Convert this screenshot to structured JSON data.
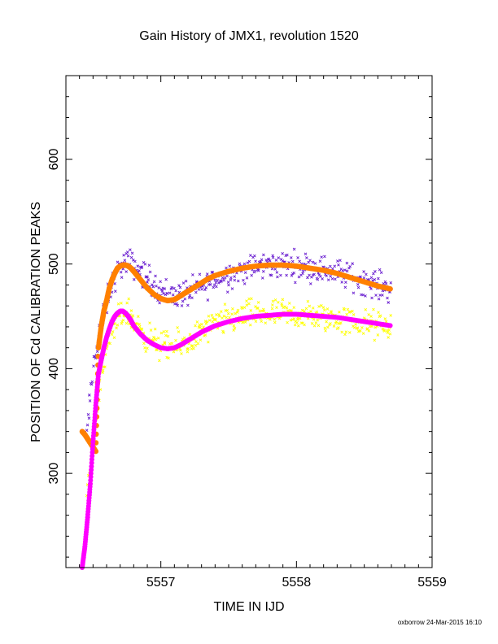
{
  "chart_data": {
    "type": "scatter",
    "title": "Gain History of JMX1, revolution 1520",
    "xlabel": "TIME IN IJD",
    "ylabel": "POSITION OF Cd CALIBRATION PEAKS",
    "xlim": [
      5556.3,
      5559
    ],
    "ylim": [
      210,
      680
    ],
    "x_ticks": [
      5557,
      5558,
      5559
    ],
    "y_ticks": [
      300,
      400,
      500,
      600
    ],
    "grid": false,
    "series": [
      {
        "marker": "x",
        "color": "#6a1fd0",
        "trend": [
          [
            5556.45,
            330
          ],
          [
            5556.5,
            400
          ],
          [
            5556.55,
            440
          ],
          [
            5556.6,
            462
          ],
          [
            5556.65,
            485
          ],
          [
            5556.7,
            497
          ],
          [
            5556.75,
            502
          ],
          [
            5556.8,
            499
          ],
          [
            5556.9,
            487
          ],
          [
            5557.0,
            475
          ],
          [
            5557.1,
            470
          ],
          [
            5557.2,
            472
          ],
          [
            5557.3,
            478
          ],
          [
            5557.4,
            485
          ],
          [
            5557.5,
            490
          ],
          [
            5557.6,
            494
          ],
          [
            5557.7,
            497
          ],
          [
            5557.8,
            499
          ],
          [
            5557.9,
            500
          ],
          [
            5558.0,
            499
          ],
          [
            5558.1,
            497
          ],
          [
            5558.2,
            495
          ],
          [
            5558.3,
            492
          ],
          [
            5558.4,
            488
          ],
          [
            5558.5,
            484
          ],
          [
            5558.6,
            480
          ],
          [
            5558.7,
            476
          ]
        ],
        "spread": 13
      },
      {
        "marker": "x",
        "color": "#ffff00",
        "trend": [
          [
            5556.45,
            270
          ],
          [
            5556.5,
            330
          ],
          [
            5556.55,
            390
          ],
          [
            5556.6,
            420
          ],
          [
            5556.65,
            435
          ],
          [
            5556.7,
            450
          ],
          [
            5556.75,
            455
          ],
          [
            5556.8,
            445
          ],
          [
            5556.9,
            430
          ],
          [
            5557.0,
            422
          ],
          [
            5557.1,
            420
          ],
          [
            5557.2,
            425
          ],
          [
            5557.3,
            435
          ],
          [
            5557.4,
            442
          ],
          [
            5557.5,
            447
          ],
          [
            5557.6,
            450
          ],
          [
            5557.7,
            452
          ],
          [
            5557.8,
            452
          ],
          [
            5557.9,
            452
          ],
          [
            5558.0,
            451
          ],
          [
            5558.1,
            450
          ],
          [
            5558.2,
            449
          ],
          [
            5558.3,
            447
          ],
          [
            5558.4,
            445
          ],
          [
            5558.5,
            443
          ],
          [
            5558.6,
            441
          ],
          [
            5558.7,
            439
          ]
        ],
        "spread": 14
      },
      {
        "marker": "o",
        "color": "#ff8000",
        "x": [
          5556.42,
          5556.44,
          5556.46,
          5556.48,
          5556.5,
          5556.52,
          5556.54,
          5556.56,
          5556.58,
          5556.6,
          5556.62,
          5556.64,
          5556.66,
          5556.68,
          5556.7,
          5556.72,
          5556.74,
          5556.76,
          5556.78,
          5556.8,
          5556.85,
          5556.9,
          5556.95,
          5557.0,
          5557.05,
          5557.1,
          5557.15,
          5557.2,
          5557.25,
          5557.3,
          5557.35,
          5557.4,
          5557.5,
          5557.6,
          5557.7,
          5557.8,
          5557.9,
          5558.0,
          5558.1,
          5558.2,
          5558.3,
          5558.4,
          5558.5,
          5558.6,
          5558.7
        ],
        "y": [
          340,
          337,
          333,
          329,
          325,
          321,
          420,
          440,
          455,
          465,
          477,
          485,
          491,
          496,
          498,
          499,
          499,
          498,
          496,
          493,
          485,
          477,
          471,
          467,
          465,
          466,
          470,
          474,
          478,
          482,
          486,
          489,
          493,
          496,
          498,
          499,
          499,
          498,
          496,
          494,
          491,
          487,
          483,
          479,
          476
        ]
      },
      {
        "marker": "o",
        "color": "#ff00ff",
        "x": [
          5556.42,
          5556.44,
          5556.46,
          5556.48,
          5556.5,
          5556.52,
          5556.54,
          5556.56,
          5556.58,
          5556.6,
          5556.62,
          5556.64,
          5556.66,
          5556.68,
          5556.7,
          5556.72,
          5556.74,
          5556.76,
          5556.78,
          5556.8,
          5556.85,
          5556.9,
          5556.95,
          5557.0,
          5557.05,
          5557.1,
          5557.15,
          5557.2,
          5557.25,
          5557.3,
          5557.35,
          5557.4,
          5557.5,
          5557.6,
          5557.7,
          5557.8,
          5557.9,
          5558.0,
          5558.1,
          5558.2,
          5558.3,
          5558.4,
          5558.5,
          5558.6,
          5558.7
        ],
        "y": [
          210,
          230,
          258,
          290,
          330,
          365,
          395,
          408,
          420,
          430,
          438,
          445,
          450,
          453,
          455,
          455,
          453,
          450,
          446,
          441,
          433,
          427,
          423,
          420,
          419,
          420,
          423,
          427,
          431,
          435,
          438,
          441,
          445,
          448,
          450,
          451,
          452,
          452,
          451,
          450,
          449,
          447,
          445,
          443,
          441
        ]
      }
    ],
    "annotations": [
      "oxborrow 24-Mar-2015 16:10"
    ]
  }
}
